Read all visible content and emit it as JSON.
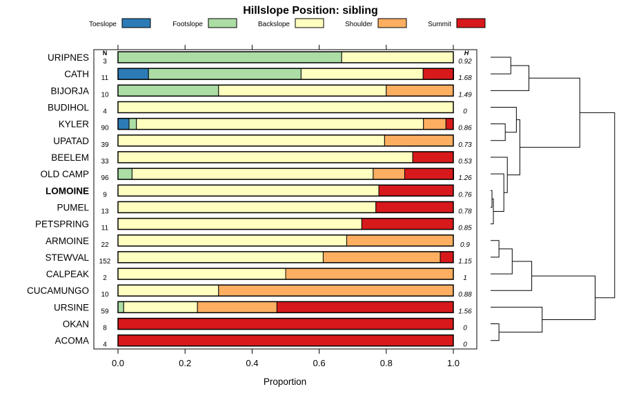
{
  "chart_data": {
    "type": "bar",
    "orientation": "horizontal",
    "stacked": true,
    "title": "Hillslope Position: sibling",
    "xlabel": "Proportion",
    "ylabel": "",
    "xlim": [
      0,
      1
    ],
    "x_ticks": [
      "0.0",
      "0.2",
      "0.4",
      "0.6",
      "0.8",
      "1.0"
    ],
    "x_tick_values": [
      0,
      0.2,
      0.4,
      0.6,
      0.8,
      1.0
    ],
    "n_header": "N",
    "h_header": "H",
    "legend": [
      {
        "name": "Toeslope",
        "color": "#2c7bb6"
      },
      {
        "name": "Footslope",
        "color": "#abdda4"
      },
      {
        "name": "Backslope",
        "color": "#ffffbf"
      },
      {
        "name": "Shoulder",
        "color": "#fdae61"
      },
      {
        "name": "Summit",
        "color": "#d7191c"
      }
    ],
    "categories": [
      {
        "name": "URIPNES",
        "n": "3",
        "h": "0.92",
        "bold": false,
        "values": [
          0,
          0.667,
          0.333,
          0,
          0
        ]
      },
      {
        "name": "CATH",
        "n": "11",
        "h": "1.68",
        "bold": false,
        "values": [
          0.091,
          0.455,
          0.364,
          0,
          0.091
        ]
      },
      {
        "name": "BIJORJA",
        "n": "10",
        "h": "1.49",
        "bold": false,
        "values": [
          0,
          0.3,
          0.5,
          0.2,
          0
        ]
      },
      {
        "name": "BUDIHOL",
        "n": "4",
        "h": "0",
        "bold": false,
        "values": [
          0,
          0,
          1.0,
          0,
          0
        ]
      },
      {
        "name": "KYLER",
        "n": "90",
        "h": "0.86",
        "bold": false,
        "values": [
          0.033,
          0.022,
          0.856,
          0.067,
          0.022
        ]
      },
      {
        "name": "UPATAD",
        "n": "39",
        "h": "0.73",
        "bold": false,
        "values": [
          0,
          0,
          0.795,
          0.205,
          0
        ]
      },
      {
        "name": "BEELEM",
        "n": "33",
        "h": "0.53",
        "bold": false,
        "values": [
          0,
          0,
          0.879,
          0,
          0.121
        ]
      },
      {
        "name": "OLD CAMP",
        "n": "96",
        "h": "1.26",
        "bold": false,
        "values": [
          0,
          0.042,
          0.719,
          0.094,
          0.146
        ]
      },
      {
        "name": "LOMOINE",
        "n": "9",
        "h": "0.76",
        "bold": true,
        "values": [
          0,
          0,
          0.778,
          0,
          0.222
        ]
      },
      {
        "name": "PUMEL",
        "n": "13",
        "h": "0.78",
        "bold": false,
        "values": [
          0,
          0,
          0.769,
          0,
          0.231
        ]
      },
      {
        "name": "PETSPRING",
        "n": "11",
        "h": "0.85",
        "bold": false,
        "values": [
          0,
          0,
          0.727,
          0,
          0.273
        ]
      },
      {
        "name": "ARMOINE",
        "n": "22",
        "h": "0.9",
        "bold": false,
        "values": [
          0,
          0,
          0.682,
          0.318,
          0
        ]
      },
      {
        "name": "STEWVAL",
        "n": "152",
        "h": "1.15",
        "bold": false,
        "values": [
          0,
          0,
          0.612,
          0.349,
          0.039
        ]
      },
      {
        "name": "CALPEAK",
        "n": "2",
        "h": "1",
        "bold": false,
        "values": [
          0,
          0,
          0.5,
          0.5,
          0
        ]
      },
      {
        "name": "CUCAMUNGO",
        "n": "10",
        "h": "0.88",
        "bold": false,
        "values": [
          0,
          0,
          0.3,
          0.7,
          0
        ]
      },
      {
        "name": "URSINE",
        "n": "59",
        "h": "1.56",
        "bold": false,
        "values": [
          0,
          0.017,
          0.22,
          0.237,
          0.526
        ]
      },
      {
        "name": "OKAN",
        "n": "8",
        "h": "0",
        "bold": false,
        "values": [
          0,
          0,
          0,
          0,
          1.0
        ]
      },
      {
        "name": "ACOMA",
        "n": "4",
        "h": "0",
        "bold": false,
        "values": [
          0,
          0,
          0,
          0,
          1.0
        ]
      }
    ],
    "dendrogram": {
      "type": "hierarchical-clustering",
      "leaf_order": [
        "URIPNES",
        "CATH",
        "BIJORJA",
        "BUDIHOL",
        "KYLER",
        "UPATAD",
        "BEELEM",
        "OLD CAMP",
        "LOMOINE",
        "PUMEL",
        "PETSPRING",
        "ARMOINE",
        "STEWVAL",
        "CALPEAK",
        "CUCAMUNGO",
        "URSINE",
        "OKAN",
        "ACOMA"
      ],
      "merges": [
        {
          "a": 0,
          "b": 1,
          "height": 0.29
        },
        {
          "a": "m0",
          "b": 2,
          "height": 0.55
        },
        {
          "a": 4,
          "b": 5,
          "height": 0.21
        },
        {
          "a": 3,
          "b": "m2",
          "height": 0.37
        },
        {
          "a": 8,
          "b": 9,
          "height": 0.02
        },
        {
          "a": "m4",
          "b": 10,
          "height": 0.04
        },
        {
          "a": "m5",
          "b": 7,
          "height": 0.19
        },
        {
          "a": 6,
          "b": "m6",
          "height": 0.24
        },
        {
          "a": "m3",
          "b": "m7",
          "height": 0.42
        },
        {
          "a": "m1",
          "b": "m8",
          "height": 1.28
        },
        {
          "a": 11,
          "b": 12,
          "height": 0.12
        },
        {
          "a": "m10",
          "b": 13,
          "height": 0.31
        },
        {
          "a": "m11",
          "b": 14,
          "height": 0.59
        },
        {
          "a": 16,
          "b": 17,
          "height": 0.12
        },
        {
          "a": 15,
          "b": "m13",
          "height": 0.74
        },
        {
          "a": "m12",
          "b": "m14",
          "height": 1.5
        },
        {
          "a": "m9",
          "b": "m15",
          "height": 1.78
        }
      ]
    }
  }
}
